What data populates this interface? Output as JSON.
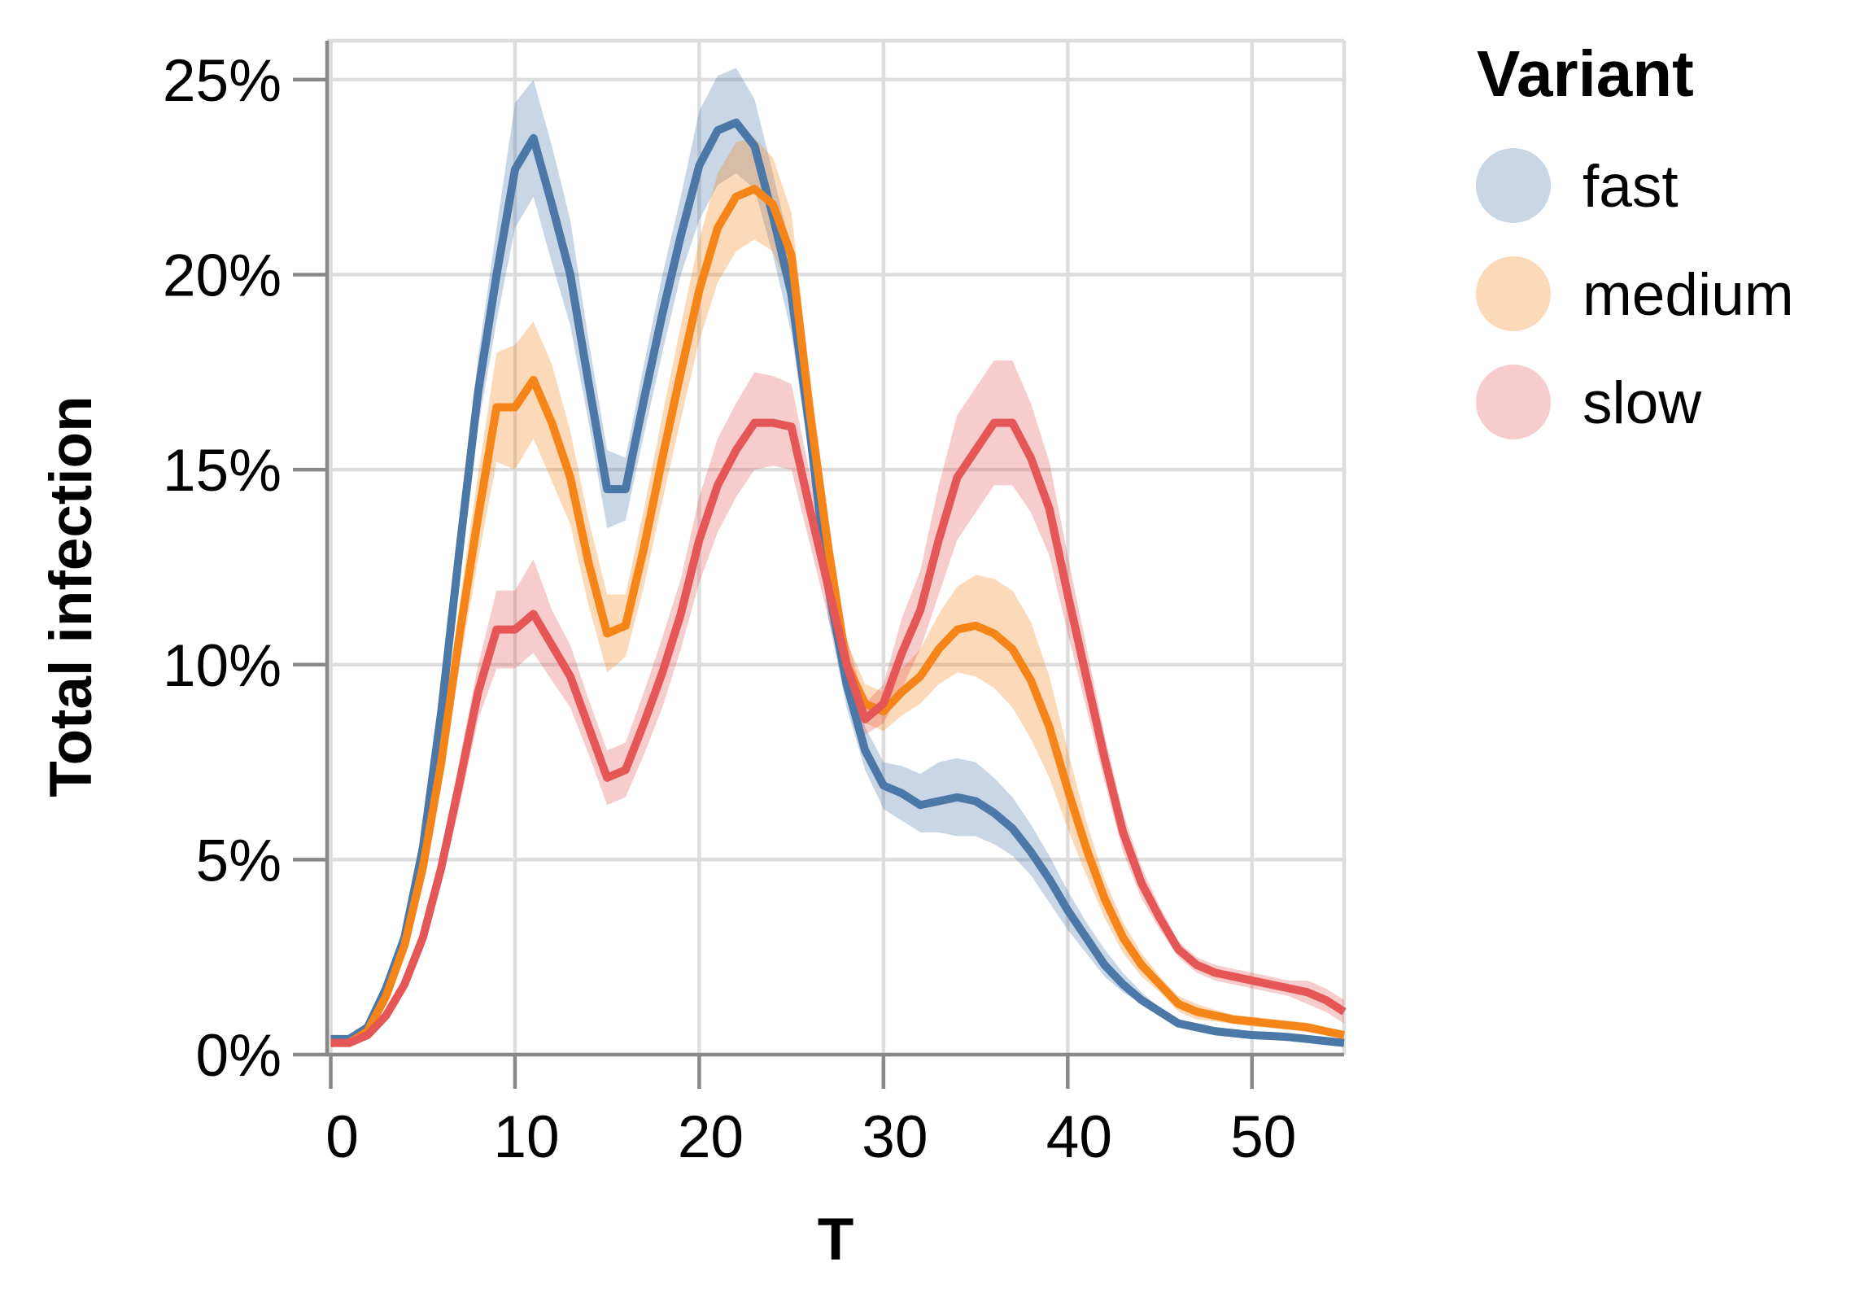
{
  "chart_data": {
    "type": "line",
    "title": "",
    "xlabel": "T",
    "ylabel": "Total infection",
    "xlim": [
      -0.2,
      55
    ],
    "ylim": [
      0,
      0.26
    ],
    "x_ticks": [
      0,
      10,
      20,
      30,
      40,
      50
    ],
    "x_tick_labels": [
      "0",
      "10",
      "20",
      "30",
      "40",
      "50"
    ],
    "y_ticks": [
      0,
      0.05,
      0.1,
      0.15,
      0.2,
      0.25
    ],
    "y_tick_labels": [
      "0%",
      "5%",
      "10%",
      "15%",
      "20%",
      "25%"
    ],
    "grid": true,
    "legend": {
      "title": "Variant",
      "placement": "right"
    },
    "x": [
      0,
      1,
      2,
      3,
      4,
      5,
      6,
      7,
      8,
      9,
      10,
      11,
      12,
      13,
      14,
      15,
      16,
      17,
      18,
      19,
      20,
      21,
      22,
      23,
      24,
      25,
      26,
      27,
      28,
      29,
      30,
      31,
      32,
      33,
      34,
      35,
      36,
      37,
      38,
      39,
      40,
      41,
      42,
      43,
      44,
      45,
      46,
      47,
      48,
      49,
      50,
      51,
      52,
      53,
      54,
      55
    ],
    "series": [
      {
        "name": "fast",
        "color": "#4c78a8",
        "values": [
          0.004,
          0.004,
          0.007,
          0.017,
          0.03,
          0.053,
          0.088,
          0.13,
          0.17,
          0.2,
          0.227,
          0.235,
          0.218,
          0.2,
          0.172,
          0.145,
          0.145,
          0.168,
          0.19,
          0.21,
          0.228,
          0.237,
          0.239,
          0.233,
          0.215,
          0.195,
          0.16,
          0.12,
          0.095,
          0.078,
          0.069,
          0.067,
          0.064,
          0.065,
          0.066,
          0.065,
          0.062,
          0.058,
          0.052,
          0.045,
          0.037,
          0.03,
          0.023,
          0.018,
          0.014,
          0.011,
          0.008,
          0.007,
          0.006,
          0.0055,
          0.005,
          0.0048,
          0.0045,
          0.004,
          0.0035,
          0.003
        ],
        "lower": [
          0.003,
          0.003,
          0.006,
          0.015,
          0.027,
          0.049,
          0.082,
          0.122,
          0.161,
          0.188,
          0.212,
          0.22,
          0.203,
          0.187,
          0.162,
          0.135,
          0.137,
          0.159,
          0.18,
          0.2,
          0.214,
          0.223,
          0.226,
          0.222,
          0.205,
          0.185,
          0.152,
          0.112,
          0.089,
          0.073,
          0.063,
          0.06,
          0.057,
          0.057,
          0.056,
          0.056,
          0.054,
          0.051,
          0.046,
          0.039,
          0.032,
          0.026,
          0.02,
          0.016,
          0.013,
          0.01,
          0.007,
          0.006,
          0.005,
          0.0048,
          0.0043,
          0.0041,
          0.0038,
          0.0034,
          0.003,
          0.0025
        ],
        "upper": [
          0.005,
          0.005,
          0.008,
          0.019,
          0.033,
          0.057,
          0.094,
          0.138,
          0.179,
          0.212,
          0.244,
          0.25,
          0.233,
          0.214,
          0.183,
          0.155,
          0.153,
          0.177,
          0.2,
          0.22,
          0.242,
          0.251,
          0.253,
          0.245,
          0.226,
          0.206,
          0.169,
          0.128,
          0.101,
          0.084,
          0.075,
          0.074,
          0.072,
          0.075,
          0.076,
          0.075,
          0.071,
          0.066,
          0.059,
          0.051,
          0.042,
          0.034,
          0.027,
          0.021,
          0.016,
          0.012,
          0.009,
          0.008,
          0.007,
          0.0062,
          0.0058,
          0.0055,
          0.0052,
          0.0047,
          0.0041,
          0.0036
        ]
      },
      {
        "name": "medium",
        "color": "#f58518",
        "values": [
          0.003,
          0.003,
          0.006,
          0.015,
          0.028,
          0.048,
          0.075,
          0.108,
          0.138,
          0.166,
          0.166,
          0.173,
          0.162,
          0.148,
          0.126,
          0.108,
          0.11,
          0.13,
          0.153,
          0.175,
          0.196,
          0.212,
          0.22,
          0.222,
          0.218,
          0.205,
          0.165,
          0.13,
          0.1,
          0.09,
          0.088,
          0.093,
          0.097,
          0.104,
          0.109,
          0.11,
          0.108,
          0.104,
          0.096,
          0.084,
          0.068,
          0.053,
          0.04,
          0.03,
          0.023,
          0.018,
          0.013,
          0.011,
          0.01,
          0.009,
          0.0085,
          0.008,
          0.0075,
          0.007,
          0.006,
          0.005
        ],
        "lower": [
          0.002,
          0.002,
          0.005,
          0.013,
          0.025,
          0.044,
          0.069,
          0.1,
          0.127,
          0.152,
          0.15,
          0.158,
          0.147,
          0.136,
          0.115,
          0.098,
          0.102,
          0.12,
          0.142,
          0.163,
          0.183,
          0.198,
          0.206,
          0.209,
          0.206,
          0.194,
          0.156,
          0.122,
          0.094,
          0.085,
          0.083,
          0.087,
          0.09,
          0.095,
          0.098,
          0.097,
          0.094,
          0.089,
          0.081,
          0.071,
          0.058,
          0.046,
          0.035,
          0.026,
          0.02,
          0.016,
          0.011,
          0.009,
          0.0085,
          0.0078,
          0.0073,
          0.0068,
          0.0063,
          0.0058,
          0.005,
          0.0042
        ],
        "upper": [
          0.004,
          0.004,
          0.007,
          0.017,
          0.031,
          0.052,
          0.081,
          0.116,
          0.149,
          0.18,
          0.182,
          0.188,
          0.177,
          0.16,
          0.137,
          0.118,
          0.118,
          0.14,
          0.164,
          0.187,
          0.209,
          0.226,
          0.234,
          0.235,
          0.23,
          0.216,
          0.174,
          0.138,
          0.106,
          0.095,
          0.093,
          0.099,
          0.104,
          0.113,
          0.12,
          0.123,
          0.122,
          0.119,
          0.111,
          0.097,
          0.078,
          0.06,
          0.045,
          0.034,
          0.026,
          0.02,
          0.015,
          0.013,
          0.0115,
          0.0102,
          0.0097,
          0.0092,
          0.0087,
          0.0082,
          0.007,
          0.0058
        ]
      },
      {
        "name": "slow",
        "color": "#e45756",
        "values": [
          0.003,
          0.003,
          0.005,
          0.01,
          0.018,
          0.03,
          0.048,
          0.07,
          0.093,
          0.109,
          0.109,
          0.113,
          0.105,
          0.097,
          0.084,
          0.071,
          0.073,
          0.085,
          0.098,
          0.113,
          0.132,
          0.146,
          0.155,
          0.162,
          0.162,
          0.161,
          0.14,
          0.12,
          0.1,
          0.086,
          0.09,
          0.103,
          0.114,
          0.132,
          0.148,
          0.155,
          0.162,
          0.162,
          0.153,
          0.14,
          0.118,
          0.097,
          0.076,
          0.057,
          0.044,
          0.035,
          0.027,
          0.023,
          0.021,
          0.02,
          0.019,
          0.018,
          0.017,
          0.016,
          0.014,
          0.011
        ],
        "lower": [
          0.002,
          0.002,
          0.004,
          0.009,
          0.016,
          0.027,
          0.044,
          0.064,
          0.086,
          0.099,
          0.099,
          0.103,
          0.096,
          0.089,
          0.077,
          0.064,
          0.066,
          0.077,
          0.089,
          0.104,
          0.121,
          0.134,
          0.143,
          0.15,
          0.151,
          0.15,
          0.131,
          0.112,
          0.093,
          0.082,
          0.085,
          0.094,
          0.104,
          0.118,
          0.132,
          0.139,
          0.146,
          0.146,
          0.139,
          0.128,
          0.108,
          0.089,
          0.07,
          0.052,
          0.04,
          0.032,
          0.025,
          0.021,
          0.019,
          0.018,
          0.017,
          0.016,
          0.015,
          0.013,
          0.011,
          0.008
        ],
        "upper": [
          0.004,
          0.004,
          0.006,
          0.011,
          0.02,
          0.033,
          0.052,
          0.076,
          0.1,
          0.119,
          0.119,
          0.127,
          0.114,
          0.105,
          0.091,
          0.078,
          0.08,
          0.093,
          0.107,
          0.122,
          0.143,
          0.158,
          0.167,
          0.175,
          0.174,
          0.172,
          0.149,
          0.128,
          0.107,
          0.09,
          0.095,
          0.112,
          0.124,
          0.146,
          0.164,
          0.171,
          0.178,
          0.178,
          0.167,
          0.152,
          0.128,
          0.105,
          0.082,
          0.062,
          0.048,
          0.038,
          0.029,
          0.025,
          0.023,
          0.022,
          0.021,
          0.02,
          0.019,
          0.019,
          0.017,
          0.014
        ]
      }
    ]
  }
}
